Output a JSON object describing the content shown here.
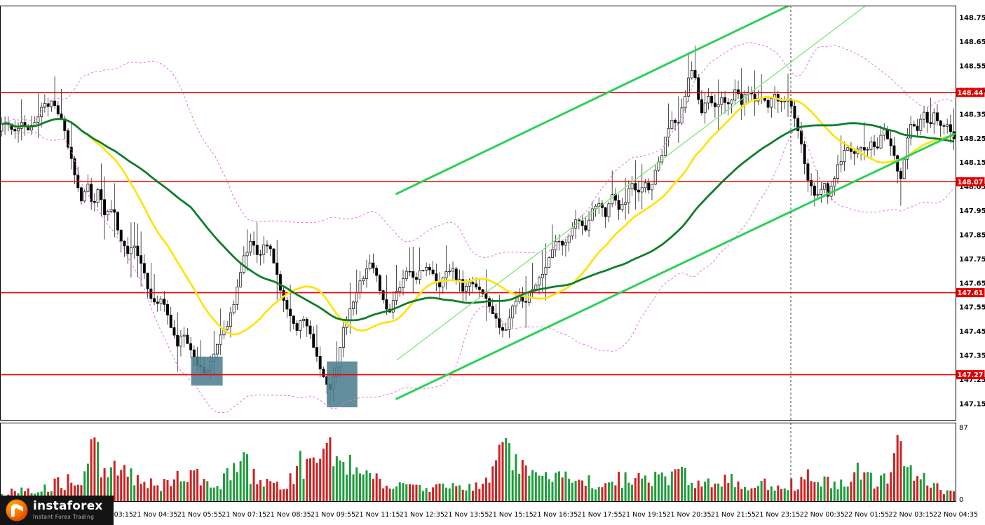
{
  "branding": {
    "name": "instaforex",
    "tagline": "Instant Forex Trading"
  },
  "axis": {
    "price_ticks": [
      "148.75",
      "148.65",
      "148.55",
      "148.45",
      "148.35",
      "148.25",
      "148.15",
      "148.05",
      "147.95",
      "147.85",
      "147.75",
      "147.65",
      "147.55",
      "147.45",
      "147.35",
      "147.25",
      "147.15"
    ],
    "level_badges": [
      "148.44",
      "148.07",
      "147.61",
      "147.27"
    ],
    "volume_max_label": "87",
    "volume_min_label": "0",
    "time_labels": [
      "21 Nov 03:15",
      "21 Nov 04:35",
      "21 Nov 05:55",
      "21 Nov 07:15",
      "21 Nov 08:35",
      "21 Nov 09:55",
      "21 Nov 11:15",
      "21 Nov 12:35",
      "21 Nov 13:55",
      "21 Nov 15:15",
      "21 Nov 16:35",
      "21 Nov 17:55",
      "21 Nov 19:15",
      "21 Nov 20:35",
      "21 Nov 21:55",
      "21 Nov 23:15",
      "22 Nov 00:35",
      "22 Nov 01:55",
      "22 Nov 03:15",
      "22 Nov 04:35"
    ]
  },
  "chart_data": {
    "type": "candlestick",
    "panes": [
      "price",
      "volume"
    ],
    "y_range": [
      147.08,
      148.8
    ],
    "y_tick_step": 0.1,
    "red_levels": [
      148.44,
      148.07,
      147.61,
      147.27
    ],
    "volume_axis_max": 87,
    "candle_count": 288,
    "price_path": [
      [
        0.0,
        148.28
      ],
      [
        0.008,
        148.33
      ],
      [
        0.016,
        148.28
      ],
      [
        0.024,
        148.31
      ],
      [
        0.032,
        148.27
      ],
      [
        0.04,
        148.34
      ],
      [
        0.048,
        148.38
      ],
      [
        0.056,
        148.41
      ],
      [
        0.062,
        148.36
      ],
      [
        0.068,
        148.3
      ],
      [
        0.074,
        148.2
      ],
      [
        0.08,
        148.1
      ],
      [
        0.087,
        147.98
      ],
      [
        0.093,
        148.06
      ],
      [
        0.099,
        147.96
      ],
      [
        0.105,
        148.04
      ],
      [
        0.112,
        147.92
      ],
      [
        0.119,
        147.97
      ],
      [
        0.127,
        147.84
      ],
      [
        0.135,
        147.76
      ],
      [
        0.142,
        147.82
      ],
      [
        0.15,
        147.72
      ],
      [
        0.157,
        147.62
      ],
      [
        0.164,
        147.55
      ],
      [
        0.171,
        147.6
      ],
      [
        0.179,
        147.48
      ],
      [
        0.187,
        147.4
      ],
      [
        0.195,
        147.44
      ],
      [
        0.202,
        147.36
      ],
      [
        0.209,
        147.3
      ],
      [
        0.217,
        147.28
      ],
      [
        0.224,
        147.35
      ],
      [
        0.231,
        147.42
      ],
      [
        0.238,
        147.46
      ],
      [
        0.246,
        147.56
      ],
      [
        0.252,
        147.68
      ],
      [
        0.259,
        147.78
      ],
      [
        0.266,
        147.82
      ],
      [
        0.273,
        147.76
      ],
      [
        0.279,
        147.83
      ],
      [
        0.286,
        147.77
      ],
      [
        0.293,
        147.66
      ],
      [
        0.3,
        147.57
      ],
      [
        0.307,
        147.5
      ],
      [
        0.313,
        147.45
      ],
      [
        0.319,
        147.52
      ],
      [
        0.326,
        147.44
      ],
      [
        0.333,
        147.34
      ],
      [
        0.34,
        147.27
      ],
      [
        0.347,
        147.21
      ],
      [
        0.354,
        147.3
      ],
      [
        0.361,
        147.46
      ],
      [
        0.368,
        147.55
      ],
      [
        0.375,
        147.61
      ],
      [
        0.382,
        147.68
      ],
      [
        0.388,
        147.74
      ],
      [
        0.394,
        147.69
      ],
      [
        0.401,
        147.6
      ],
      [
        0.408,
        147.53
      ],
      [
        0.414,
        147.58
      ],
      [
        0.421,
        147.64
      ],
      [
        0.428,
        147.7
      ],
      [
        0.434,
        147.66
      ],
      [
        0.441,
        147.7
      ],
      [
        0.448,
        147.73
      ],
      [
        0.454,
        147.68
      ],
      [
        0.461,
        147.64
      ],
      [
        0.468,
        147.68
      ],
      [
        0.474,
        147.71
      ],
      [
        0.481,
        147.66
      ],
      [
        0.488,
        147.62
      ],
      [
        0.495,
        147.66
      ],
      [
        0.502,
        147.62
      ],
      [
        0.509,
        147.58
      ],
      [
        0.516,
        147.54
      ],
      [
        0.523,
        147.48
      ],
      [
        0.53,
        147.45
      ],
      [
        0.537,
        147.54
      ],
      [
        0.544,
        147.61
      ],
      [
        0.551,
        147.57
      ],
      [
        0.558,
        147.62
      ],
      [
        0.565,
        147.66
      ],
      [
        0.572,
        147.7
      ],
      [
        0.579,
        147.77
      ],
      [
        0.586,
        147.84
      ],
      [
        0.593,
        147.8
      ],
      [
        0.6,
        147.87
      ],
      [
        0.607,
        147.92
      ],
      [
        0.614,
        147.86
      ],
      [
        0.621,
        147.94
      ],
      [
        0.628,
        147.99
      ],
      [
        0.635,
        147.93
      ],
      [
        0.642,
        148.02
      ],
      [
        0.649,
        147.96
      ],
      [
        0.656,
        147.99
      ],
      [
        0.663,
        148.06
      ],
      [
        0.669,
        148.0
      ],
      [
        0.675,
        148.07
      ],
      [
        0.681,
        148.02
      ],
      [
        0.687,
        148.1
      ],
      [
        0.693,
        148.16
      ],
      [
        0.699,
        148.26
      ],
      [
        0.705,
        148.34
      ],
      [
        0.711,
        148.3
      ],
      [
        0.717,
        148.4
      ],
      [
        0.723,
        148.5
      ],
      [
        0.727,
        148.56
      ],
      [
        0.731,
        148.44
      ],
      [
        0.737,
        148.35
      ],
      [
        0.743,
        148.43
      ],
      [
        0.75,
        148.38
      ],
      [
        0.757,
        148.43
      ],
      [
        0.764,
        148.39
      ],
      [
        0.771,
        148.44
      ],
      [
        0.778,
        148.4
      ],
      [
        0.785,
        148.44
      ],
      [
        0.792,
        148.4
      ],
      [
        0.799,
        148.43
      ],
      [
        0.806,
        148.39
      ],
      [
        0.813,
        148.43
      ],
      [
        0.82,
        148.4
      ],
      [
        0.827,
        148.42
      ],
      [
        0.833,
        148.34
      ],
      [
        0.839,
        148.24
      ],
      [
        0.845,
        148.12
      ],
      [
        0.851,
        148.04
      ],
      [
        0.857,
        148.0
      ],
      [
        0.863,
        148.07
      ],
      [
        0.869,
        148.01
      ],
      [
        0.875,
        148.09
      ],
      [
        0.881,
        148.16
      ],
      [
        0.888,
        148.22
      ],
      [
        0.895,
        148.17
      ],
      [
        0.901,
        148.23
      ],
      [
        0.908,
        148.19
      ],
      [
        0.914,
        148.24
      ],
      [
        0.92,
        148.2
      ],
      [
        0.926,
        148.28
      ],
      [
        0.932,
        148.24
      ],
      [
        0.938,
        148.18
      ],
      [
        0.944,
        148.06
      ],
      [
        0.95,
        148.24
      ],
      [
        0.956,
        148.33
      ],
      [
        0.962,
        148.29
      ],
      [
        0.968,
        148.35
      ],
      [
        0.974,
        148.31
      ],
      [
        0.98,
        148.35
      ],
      [
        0.986,
        148.29
      ],
      [
        0.992,
        148.33
      ],
      [
        1.0,
        148.26
      ]
    ],
    "wick_marks": [
      {
        "frac": 0.727,
        "high": 148.63
      },
      {
        "frac": 0.347,
        "low": 147.15
      },
      {
        "frac": 0.944,
        "low": 147.97
      }
    ],
    "volume_path": [
      [
        0.0,
        10
      ],
      [
        0.03,
        16
      ],
      [
        0.06,
        22
      ],
      [
        0.085,
        30
      ],
      [
        0.098,
        87
      ],
      [
        0.105,
        40
      ],
      [
        0.112,
        30
      ],
      [
        0.125,
        45
      ],
      [
        0.14,
        32
      ],
      [
        0.155,
        25
      ],
      [
        0.17,
        20
      ],
      [
        0.185,
        28
      ],
      [
        0.2,
        34
      ],
      [
        0.215,
        26
      ],
      [
        0.23,
        22
      ],
      [
        0.245,
        40
      ],
      [
        0.255,
        52
      ],
      [
        0.265,
        30
      ],
      [
        0.28,
        24
      ],
      [
        0.295,
        20
      ],
      [
        0.305,
        30
      ],
      [
        0.315,
        48
      ],
      [
        0.325,
        42
      ],
      [
        0.335,
        50
      ],
      [
        0.345,
        78
      ],
      [
        0.352,
        60
      ],
      [
        0.36,
        48
      ],
      [
        0.375,
        38
      ],
      [
        0.39,
        30
      ],
      [
        0.405,
        24
      ],
      [
        0.42,
        20
      ],
      [
        0.435,
        16
      ],
      [
        0.45,
        20
      ],
      [
        0.465,
        24
      ],
      [
        0.48,
        16
      ],
      [
        0.495,
        18
      ],
      [
        0.51,
        26
      ],
      [
        0.522,
        70
      ],
      [
        0.53,
        78
      ],
      [
        0.54,
        45
      ],
      [
        0.555,
        32
      ],
      [
        0.57,
        28
      ],
      [
        0.585,
        34
      ],
      [
        0.6,
        24
      ],
      [
        0.615,
        28
      ],
      [
        0.63,
        24
      ],
      [
        0.645,
        30
      ],
      [
        0.66,
        26
      ],
      [
        0.675,
        32
      ],
      [
        0.69,
        28
      ],
      [
        0.705,
        36
      ],
      [
        0.72,
        30
      ],
      [
        0.735,
        24
      ],
      [
        0.75,
        20
      ],
      [
        0.765,
        28
      ],
      [
        0.78,
        16
      ],
      [
        0.795,
        20
      ],
      [
        0.81,
        24
      ],
      [
        0.825,
        20
      ],
      [
        0.84,
        28
      ],
      [
        0.855,
        32
      ],
      [
        0.87,
        24
      ],
      [
        0.885,
        20
      ],
      [
        0.9,
        42
      ],
      [
        0.915,
        26
      ],
      [
        0.93,
        32
      ],
      [
        0.943,
        80
      ],
      [
        0.952,
        45
      ],
      [
        0.965,
        28
      ],
      [
        0.98,
        18
      ],
      [
        1.0,
        10
      ]
    ],
    "indicators": {
      "ma_fast_period": 26,
      "ma_slow_period": 58,
      "boll_period": 40,
      "boll_mult": 2.1
    },
    "trend_channel": [
      {
        "x1": 0.415,
        "p1": 148.02,
        "x2": 0.836,
        "p2": 148.82,
        "width": 3
      },
      {
        "x1": 0.415,
        "p1": 147.17,
        "x2": 1.0,
        "p2": 148.27,
        "width": 3
      }
    ],
    "trendline_thin": {
      "x1": 0.415,
      "p1": 147.33,
      "x2": 0.906,
      "p2": 148.8,
      "width": 1.3
    },
    "vertical_separator_frac": 0.8276,
    "highlight_boxes": [
      {
        "x1": 0.2,
        "x2": 0.233,
        "top": 147.345,
        "bottom": 147.225
      },
      {
        "x1": 0.342,
        "x2": 0.374,
        "top": 147.325,
        "bottom": 147.135
      }
    ],
    "colors": {
      "bull": "#ffffff",
      "bear": "#000000",
      "outline": "#000000",
      "volume_up": "#1f9c3d",
      "volume_down": "#cc2222",
      "level": "#ee0000",
      "badge_bg": "#dd0000",
      "badge_text": "#ffffff",
      "ma_fast": "#ffe312",
      "ma_slow": "#0f7d2a",
      "bollinger": "#dd76dd",
      "channel": "#2ed058",
      "trendline": "#7ae87a",
      "box": "#4d7e8f",
      "separator": "#444444",
      "frame": "#000000",
      "tick_text": "#000000"
    }
  }
}
